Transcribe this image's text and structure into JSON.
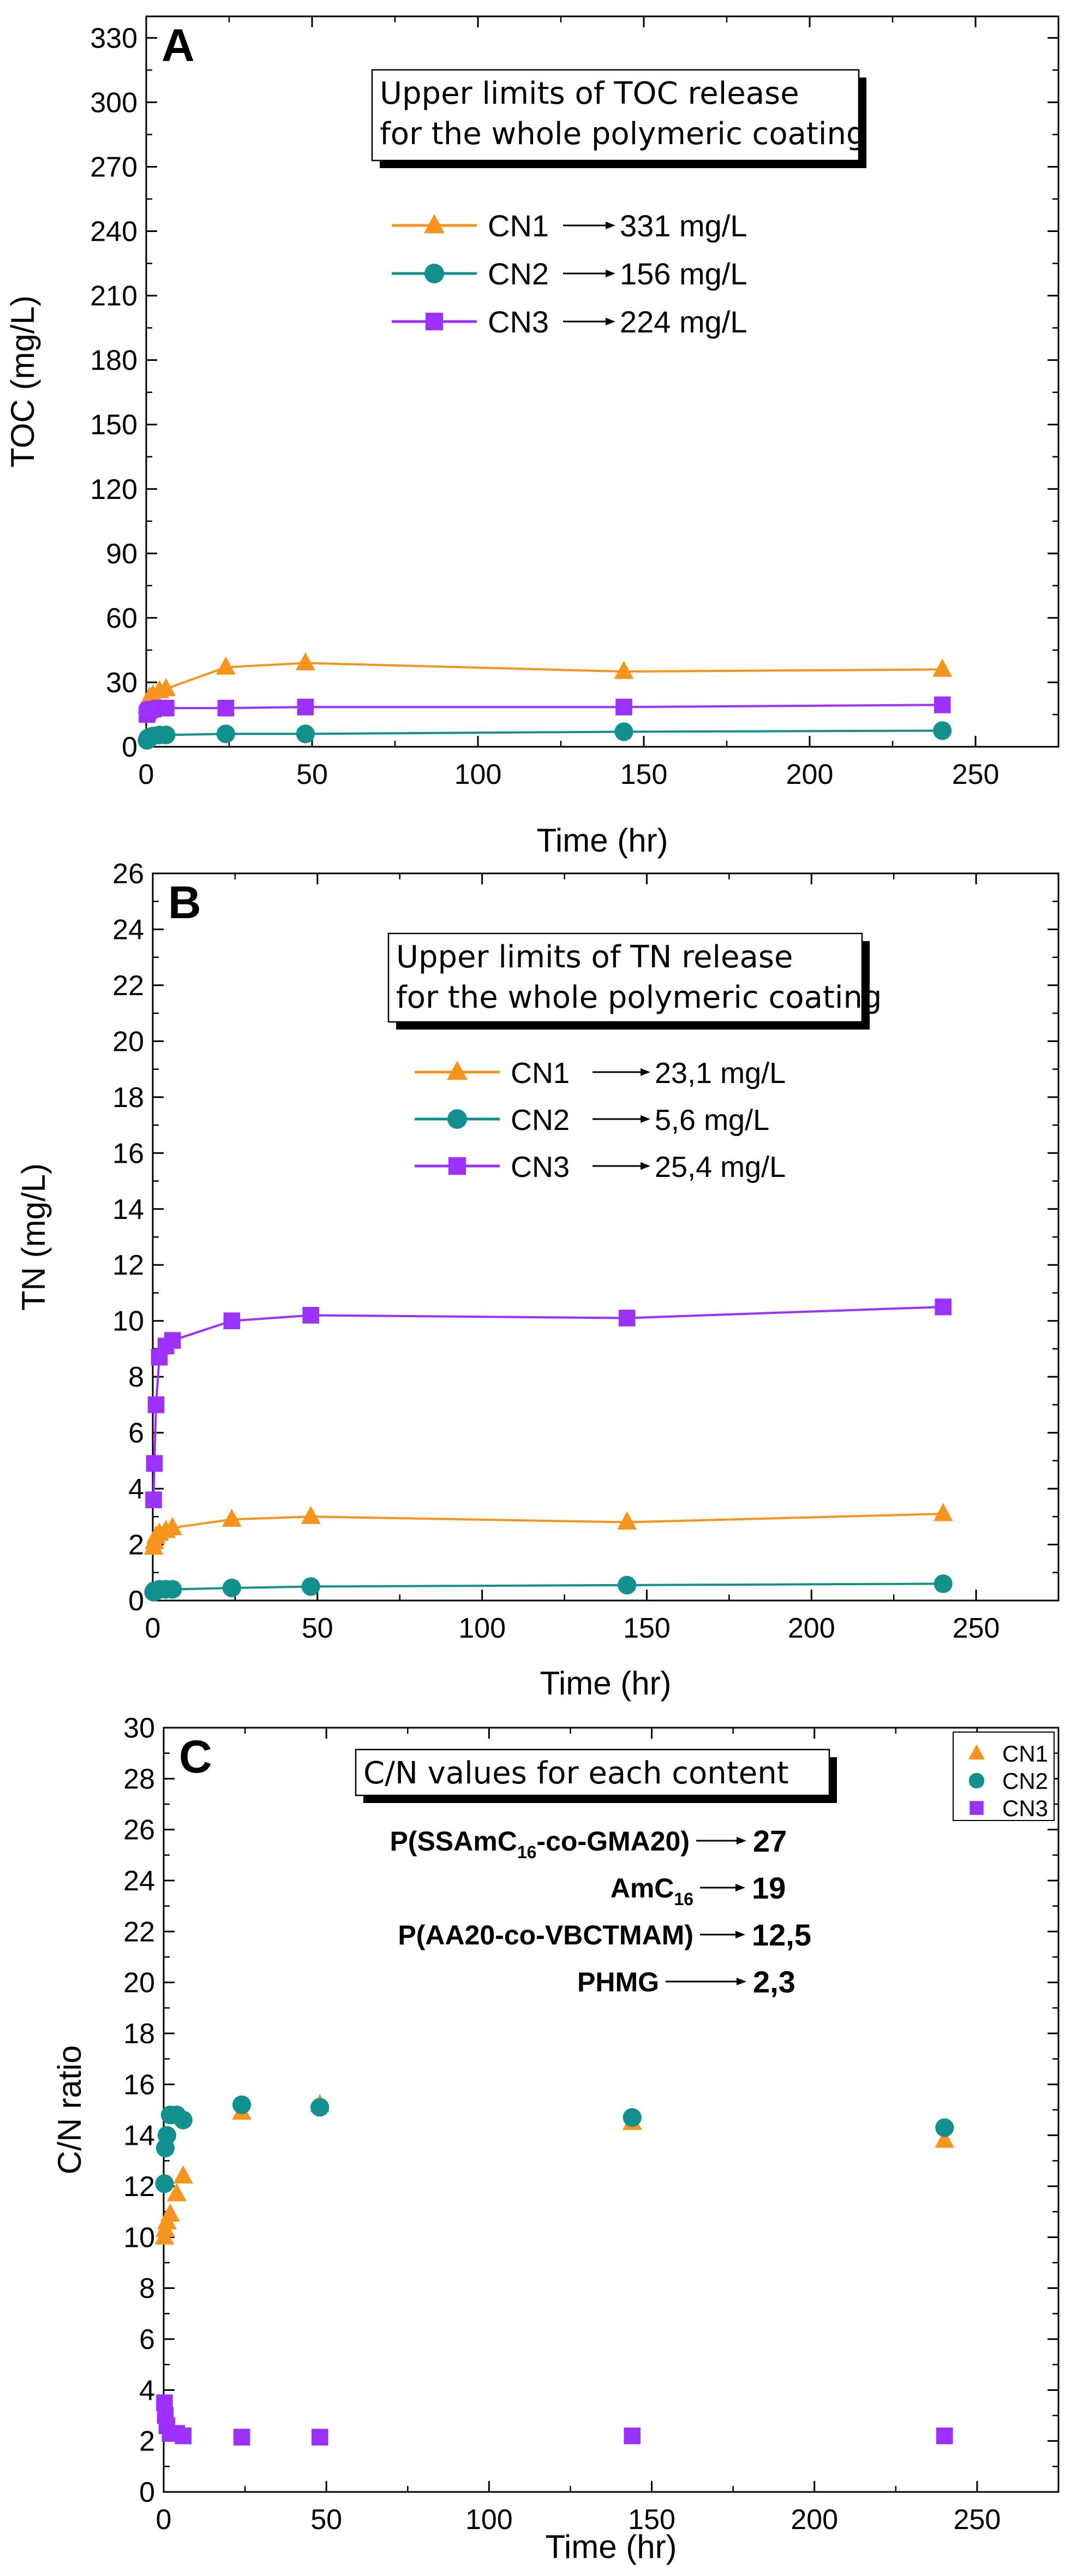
{
  "colors": {
    "cn1": "#F7941D",
    "cn2": "#12908E",
    "cn3": "#9B30FF",
    "axis": "#000000"
  },
  "chart_data": [
    {
      "panel": "A",
      "type": "line",
      "title": "",
      "xlabel": "Time (hr)",
      "ylabel": "TOC (mg/L)",
      "xlim": [
        0,
        275
      ],
      "ylim": [
        0,
        340
      ],
      "xticks": [
        0,
        50,
        100,
        150,
        200,
        250
      ],
      "yticks": [
        0,
        30,
        60,
        90,
        120,
        150,
        180,
        210,
        240,
        270,
        300,
        330
      ],
      "x": [
        0.25,
        0.5,
        1,
        2,
        4,
        6,
        24,
        48,
        144,
        240
      ],
      "series": [
        {
          "name": "CN1",
          "marker": "triangle",
          "values": [
            19,
            21,
            23,
            24,
            26,
            27,
            37,
            39,
            35,
            36
          ]
        },
        {
          "name": "CN2",
          "marker": "circle",
          "values": [
            3,
            4,
            4.5,
            5,
            5.5,
            5.5,
            6,
            6,
            7,
            7.5
          ]
        },
        {
          "name": "CN3",
          "marker": "square",
          "values": [
            15,
            16,
            17,
            17.5,
            18,
            18,
            18,
            18.5,
            18.5,
            19.5
          ]
        }
      ],
      "box": {
        "lines": [
          "Upper limits of TOC release",
          "for the whole polymeric coating"
        ]
      },
      "legend": [
        {
          "name": "CN1",
          "value": "331 mg/L"
        },
        {
          "name": "CN2",
          "value": "156 mg/L"
        },
        {
          "name": "CN3",
          "value": "224 mg/L"
        }
      ]
    },
    {
      "panel": "B",
      "type": "line",
      "title": "",
      "xlabel": "Time (hr)",
      "ylabel": "TN (mg/L)",
      "xlim": [
        0,
        275
      ],
      "ylim": [
        0,
        26
      ],
      "xticks": [
        0,
        50,
        100,
        150,
        200,
        250
      ],
      "yticks": [
        0,
        2,
        4,
        6,
        8,
        10,
        12,
        14,
        16,
        18,
        20,
        22,
        24,
        26
      ],
      "x": [
        0.25,
        0.5,
        1,
        2,
        4,
        6,
        24,
        48,
        144,
        240
      ],
      "series": [
        {
          "name": "CN1",
          "marker": "triangle",
          "values": [
            1.9,
            2.1,
            2.3,
            2.4,
            2.5,
            2.6,
            2.9,
            3.0,
            2.8,
            3.1
          ]
        },
        {
          "name": "CN2",
          "marker": "circle",
          "values": [
            0.3,
            0.35,
            0.35,
            0.4,
            0.4,
            0.4,
            0.45,
            0.5,
            0.55,
            0.6
          ]
        },
        {
          "name": "CN3",
          "marker": "square",
          "values": [
            3.6,
            4.9,
            7.0,
            8.7,
            9.1,
            9.3,
            10.0,
            10.2,
            10.1,
            10.5
          ]
        }
      ],
      "box": {
        "lines": [
          "Upper limits of TN release",
          "for the whole polymeric coating"
        ]
      },
      "legend": [
        {
          "name": "CN1",
          "value": "23,1 mg/L"
        },
        {
          "name": "CN2",
          "value": "5,6 mg/L"
        },
        {
          "name": "CN3",
          "value": "25,4 mg/L"
        }
      ]
    },
    {
      "panel": "C",
      "type": "scatter",
      "title": "",
      "xlabel": "Time (hr)",
      "ylabel": "C/N ratio",
      "xlim": [
        0,
        275
      ],
      "ylim": [
        0,
        30
      ],
      "xticks": [
        0,
        50,
        100,
        150,
        200,
        250
      ],
      "yticks": [
        0,
        2,
        4,
        6,
        8,
        10,
        12,
        14,
        16,
        18,
        20,
        22,
        24,
        26,
        28,
        30
      ],
      "x": [
        0.25,
        0.5,
        1,
        2,
        4,
        6,
        24,
        48,
        144,
        240
      ],
      "series": [
        {
          "name": "CN1",
          "marker": "triangle",
          "values": [
            10.0,
            10.3,
            10.6,
            10.9,
            11.7,
            12.4,
            14.9,
            15.2,
            14.5,
            13.8
          ]
        },
        {
          "name": "CN2",
          "marker": "circle",
          "values": [
            12.1,
            13.5,
            14.0,
            14.8,
            14.8,
            14.6,
            15.2,
            15.1,
            14.7,
            14.3
          ]
        },
        {
          "name": "CN3",
          "marker": "square",
          "values": [
            3.5,
            3.0,
            2.6,
            2.3,
            2.3,
            2.2,
            2.15,
            2.15,
            2.2,
            2.2
          ]
        }
      ],
      "box": {
        "lines": [
          "C/N values for each content"
        ]
      },
      "legend": [
        {
          "name": "CN1"
        },
        {
          "name": "CN2"
        },
        {
          "name": "CN3"
        }
      ],
      "cn_values": [
        {
          "pre": "P(SSAmC",
          "sub": "16",
          "post": "-co-GMA20)",
          "value": "27"
        },
        {
          "pre": "AmC",
          "sub": "16",
          "post": "",
          "value": "19"
        },
        {
          "pre": "P(AA20-co-VBCTMAM)",
          "sub": "",
          "post": "",
          "value": "12,5"
        },
        {
          "pre": "PHMG",
          "sub": "",
          "post": "",
          "value": "2,3"
        }
      ]
    }
  ]
}
